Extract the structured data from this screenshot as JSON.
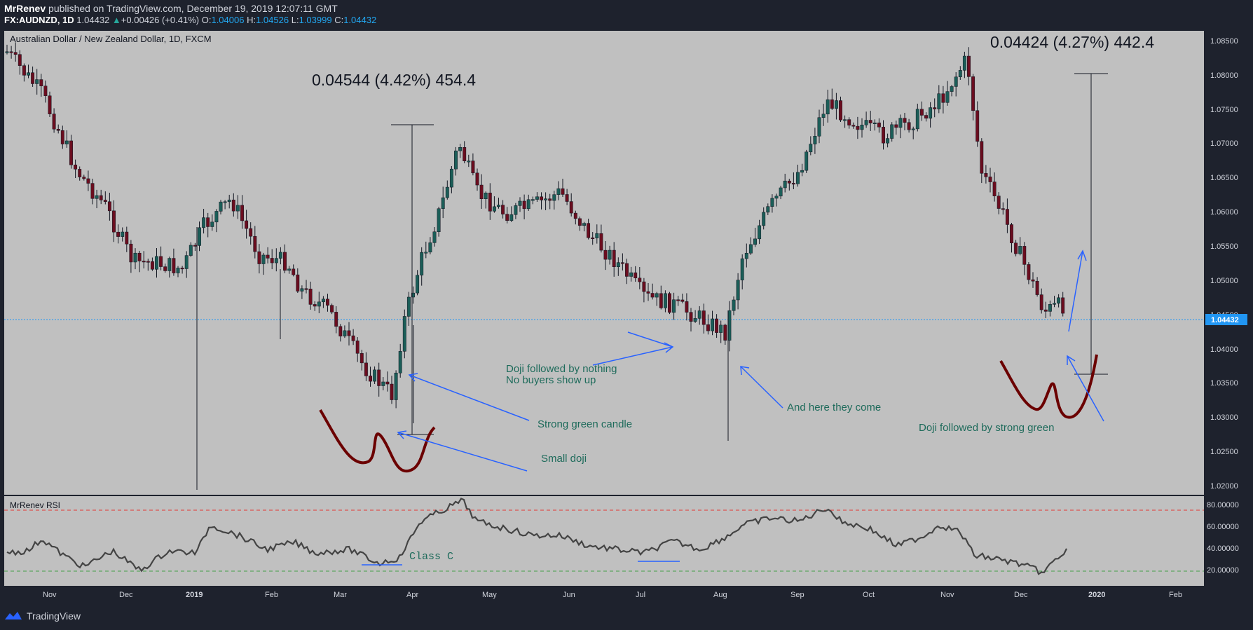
{
  "header": {
    "author": "MrRenev",
    "published": "published on TradingView.com, December 19, 2019 12:07:11 GMT",
    "symbol": "FX:AUDNZD, 1D",
    "last": "1.04432",
    "change_arrow": "▲",
    "change": "+0.00426 (+0.41%)",
    "o_label": "O:",
    "o": "1.04006",
    "h_label": "H:",
    "h": "1.04526",
    "l_label": "L:",
    "l": "1.03999",
    "c_label": "C:",
    "c": "1.04432"
  },
  "chart": {
    "pane_title": "Australian Dollar / New Zealand Dollar, 1D, FXCM",
    "current_price_label": "1.04432",
    "price_axis": [
      "1.08500",
      "1.08000",
      "1.07500",
      "1.07000",
      "1.06500",
      "1.06000",
      "1.05500",
      "1.05000",
      "1.04500",
      "1.04000",
      "1.03500",
      "1.03000",
      "1.02500",
      "1.02000"
    ],
    "time_axis": [
      "Nov",
      "Dec",
      "2019",
      "Feb",
      "Mar",
      "Apr",
      "May",
      "Jun",
      "Jul",
      "Aug",
      "Sep",
      "Oct",
      "Nov",
      "Dec",
      "2020",
      "Feb"
    ],
    "rsi_title": "MrRenev RSI",
    "rsi_axis": [
      "80.00000",
      "60.00000",
      "40.00000",
      "20.00000"
    ],
    "measure_1": "0.04544 (4.42%) 454.4",
    "measure_2": "0.04424 (4.27%) 442.4",
    "annotations": {
      "doji_nothing_1": "Doji followed by nothing",
      "doji_nothing_2": "No buyers show up",
      "strong_green": "Strong green candle",
      "small_doji": "Small doji",
      "here_they_come": "And here they come",
      "doji_strong_green": "Doji followed by strong green",
      "class_c": "Class C"
    }
  },
  "footer": {
    "brand": "TradingView"
  },
  "colors": {
    "chart_bg": "#c0c0c0",
    "up": "#1b5e58",
    "down": "#6b0d1f",
    "accent": "#2962ff",
    "annotation": "#1e6b5b",
    "pattern": "#6b0000"
  }
}
